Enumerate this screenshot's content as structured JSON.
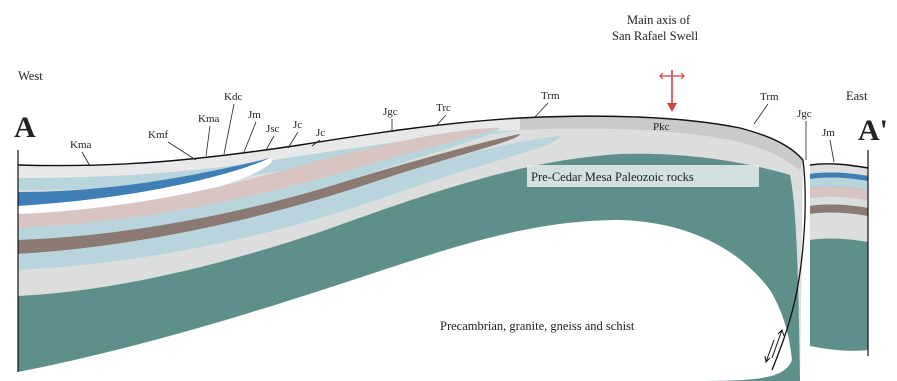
{
  "diagram": {
    "section_start": "A",
    "section_end": "A'",
    "direction_west": "West",
    "direction_east": "East",
    "axis_label_line1": "Main axis of",
    "axis_label_line2": "San Rafael Swell",
    "paleozoic_label": "Pre-Cedar Mesa Paleozoic rocks",
    "basement_label": "Precambrian, granite, gneiss and schist",
    "formation_labels": {
      "kma_west": "Kma",
      "kmf": "Kmf",
      "kma_mid": "Kma",
      "kdc": "Kdc",
      "jm_west": "Jm",
      "jsc": "Jsc",
      "jc1": "Jc",
      "jc2": "Jc",
      "jgc_west": "Jgc",
      "trc": "Trc",
      "trm_crest": "Trm",
      "pkc": "Pkc",
      "trm_east": "Trm",
      "jgc_east": "Jgc",
      "jm_east": "Jm"
    },
    "colors": {
      "paleozoic": "#5e8f8a",
      "pale_grey": "#dcdedd",
      "light_blue": "#b8d4dc",
      "blue": "#3f7fb5",
      "pink": "#d9c4c4",
      "brown": "#8b7a73",
      "light_grey": "#e8e8e8",
      "basement": "#ffffff",
      "axis_arrow": "#d7443e"
    }
  }
}
